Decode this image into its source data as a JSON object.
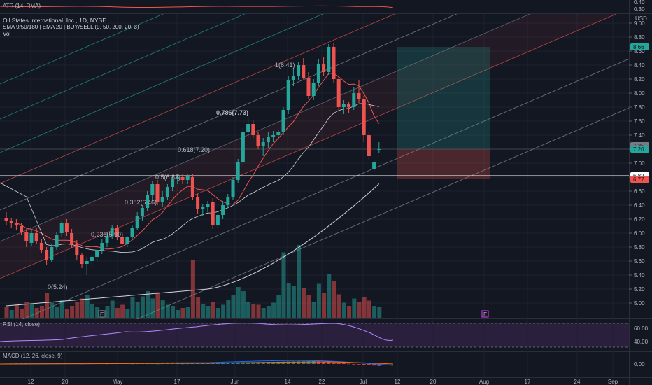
{
  "atr_panel": {
    "label": "ATR (14, RMA)",
    "ticks": [
      "0.40",
      "0.30"
    ]
  },
  "main_panel": {
    "title": "Oil States International, Inc., 1D, NYSE",
    "indicator_line": "SMA 9/50/180 | EMA 20 | BUY/SELL (9, 50, 200, 20, 3)",
    "volume_label": "Vol",
    "currency": "USD",
    "price_ticks": [
      "9.00",
      "8.80",
      "8.60",
      "8.40",
      "8.20",
      "8.00",
      "7.80",
      "7.60",
      "7.40",
      "7.20",
      "7.00",
      "6.80",
      "6.60",
      "6.40",
      "6.20",
      "6.00",
      "5.80",
      "5.60",
      "5.40",
      "5.20",
      "5.00"
    ],
    "price_tags": [
      {
        "label": "8.66",
        "color": "#26a69a"
      },
      {
        "label": "7.25",
        "color": "#787b86"
      },
      {
        "label": "7.20",
        "color": "#26a69a"
      },
      {
        "label": "6.82",
        "color": "#ffffff"
      },
      {
        "label": "6.77",
        "color": "#ef5350"
      }
    ],
    "fib_labels": [
      {
        "text": "1(8.41)",
        "color": "#9598a1"
      },
      {
        "text": "0.786(7.73)",
        "color": "#ffffff"
      },
      {
        "text": "0.618(7.20)",
        "color": "#26a69a"
      },
      {
        "text": "0.5(6.83)",
        "color": "#9598a1"
      },
      {
        "text": "0.382(6.46)",
        "color": "#d1d4dc"
      },
      {
        "text": "0.236(5.99)",
        "color": "#ef5350"
      },
      {
        "text": "0(5.24)",
        "color": "#9598a1"
      }
    ],
    "event_markers": [
      "E",
      "E"
    ]
  },
  "rsi_panel": {
    "label": "RSI (14, close)",
    "ticks": [
      "60.00",
      "40.00"
    ]
  },
  "macd_panel": {
    "label": "MACD (12, 26, close, 9)",
    "ticks": [
      "0.00"
    ]
  },
  "time_axis": [
    "12",
    "20",
    "May",
    "17",
    "Jun",
    "14",
    "22",
    "Jul",
    "12",
    "20",
    "Aug",
    "17",
    "24",
    "Sep"
  ],
  "chart_data": {
    "type": "candlestick",
    "title": "Oil States International, Inc., 1D, NYSE",
    "ylim": [
      4.9,
      9.1
    ],
    "up_color": "#26a69a",
    "down_color": "#ef5350",
    "candles": [
      [
        6.22,
        6.3,
        6.12,
        6.18
      ],
      [
        6.18,
        6.22,
        6.08,
        6.14
      ],
      [
        6.14,
        6.2,
        6.04,
        6.12
      ],
      [
        6.1,
        6.14,
        5.98,
        6.02
      ],
      [
        6.02,
        6.06,
        5.8,
        5.88
      ],
      [
        5.86,
        6.04,
        5.82,
        6.0
      ],
      [
        6.0,
        6.08,
        5.84,
        5.88
      ],
      [
        5.86,
        5.92,
        5.72,
        5.76
      ],
      [
        5.76,
        5.8,
        5.54,
        5.62
      ],
      [
        5.62,
        5.84,
        5.58,
        5.8
      ],
      [
        5.8,
        6.02,
        5.76,
        5.98
      ],
      [
        6.0,
        6.18,
        5.94,
        6.14
      ],
      [
        6.14,
        6.2,
        5.96,
        6.02
      ],
      [
        6.0,
        6.06,
        5.78,
        5.84
      ],
      [
        5.84,
        5.9,
        5.62,
        5.68
      ],
      [
        5.68,
        5.72,
        5.5,
        5.56
      ],
      [
        5.56,
        5.66,
        5.4,
        5.6
      ],
      [
        5.6,
        5.72,
        5.52,
        5.66
      ],
      [
        5.66,
        5.8,
        5.58,
        5.76
      ],
      [
        5.76,
        5.92,
        5.7,
        5.86
      ],
      [
        5.86,
        6.02,
        5.8,
        5.96
      ],
      [
        5.96,
        6.12,
        5.92,
        6.08
      ],
      [
        6.08,
        6.12,
        5.9,
        5.94
      ],
      [
        5.94,
        6.02,
        5.78,
        5.84
      ],
      [
        5.84,
        5.96,
        5.8,
        5.94
      ],
      [
        5.94,
        6.12,
        5.9,
        6.08
      ],
      [
        6.08,
        6.3,
        6.04,
        6.24
      ],
      [
        6.24,
        6.4,
        6.18,
        6.36
      ],
      [
        6.36,
        6.6,
        6.32,
        6.54
      ],
      [
        6.54,
        6.74,
        6.46,
        6.7
      ],
      [
        6.7,
        6.76,
        6.4,
        6.44
      ],
      [
        6.44,
        6.6,
        6.38,
        6.52
      ],
      [
        6.52,
        6.7,
        6.48,
        6.66
      ],
      [
        6.66,
        6.82,
        6.6,
        6.78
      ],
      [
        6.78,
        6.84,
        6.7,
        6.8
      ],
      [
        6.8,
        6.84,
        6.7,
        6.76
      ],
      [
        6.76,
        6.84,
        6.7,
        6.82
      ],
      [
        6.8,
        6.84,
        6.48,
        6.52
      ],
      [
        6.52,
        6.56,
        6.28,
        6.34
      ],
      [
        6.34,
        6.42,
        6.24,
        6.38
      ],
      [
        6.38,
        6.46,
        6.3,
        6.42
      ],
      [
        6.44,
        6.5,
        6.06,
        6.12
      ],
      [
        6.12,
        6.3,
        6.08,
        6.26
      ],
      [
        6.26,
        6.46,
        6.2,
        6.4
      ],
      [
        6.4,
        6.56,
        6.36,
        6.52
      ],
      [
        6.52,
        6.8,
        6.48,
        6.76
      ],
      [
        6.76,
        7.06,
        6.72,
        7.02
      ],
      [
        7.02,
        7.5,
        6.96,
        7.44
      ],
      [
        7.44,
        7.64,
        7.36,
        7.56
      ],
      [
        7.56,
        7.62,
        7.36,
        7.4
      ],
      [
        7.4,
        7.44,
        7.2,
        7.24
      ],
      [
        7.24,
        7.36,
        7.1,
        7.3
      ],
      [
        7.3,
        7.44,
        7.22,
        7.38
      ],
      [
        7.38,
        7.46,
        7.3,
        7.4
      ],
      [
        7.4,
        7.48,
        7.34,
        7.44
      ],
      [
        7.44,
        7.8,
        7.4,
        7.76
      ],
      [
        7.76,
        8.24,
        7.7,
        8.18
      ],
      [
        8.18,
        8.36,
        8.1,
        8.24
      ],
      [
        8.24,
        8.44,
        8.18,
        8.4
      ],
      [
        8.4,
        8.5,
        8.2,
        8.22
      ],
      [
        8.22,
        8.3,
        7.92,
        7.96
      ],
      [
        7.96,
        8.2,
        7.9,
        8.14
      ],
      [
        8.14,
        8.48,
        8.1,
        8.42
      ],
      [
        8.42,
        8.52,
        8.24,
        8.3
      ],
      [
        8.3,
        8.7,
        8.26,
        8.66
      ],
      [
        8.66,
        8.72,
        8.14,
        8.2
      ],
      [
        8.2,
        8.24,
        7.76,
        7.8
      ],
      [
        7.8,
        7.9,
        7.7,
        7.84
      ],
      [
        7.84,
        7.88,
        7.72,
        7.8
      ],
      [
        7.8,
        8.08,
        7.76,
        8.0
      ],
      [
        8.0,
        8.18,
        7.86,
        7.92
      ],
      [
        7.92,
        7.96,
        7.3,
        7.4
      ],
      [
        7.4,
        7.44,
        7.04,
        7.1
      ],
      [
        6.92,
        7.04,
        6.88,
        7.02
      ],
      [
        7.2,
        7.3,
        7.14,
        7.2
      ]
    ],
    "volume": [
      {
        "v": 1.1,
        "up": false
      },
      {
        "v": 0.8,
        "up": true
      },
      {
        "v": 1.3,
        "up": false
      },
      {
        "v": 0.9,
        "up": false
      },
      {
        "v": 1.6,
        "up": false
      },
      {
        "v": 1.4,
        "up": true
      },
      {
        "v": 1.0,
        "up": false
      },
      {
        "v": 1.2,
        "up": false
      },
      {
        "v": 2.4,
        "up": false
      },
      {
        "v": 1.5,
        "up": true
      },
      {
        "v": 1.1,
        "up": true
      },
      {
        "v": 1.8,
        "up": true
      },
      {
        "v": 0.9,
        "up": false
      },
      {
        "v": 1.2,
        "up": false
      },
      {
        "v": 1.6,
        "up": false
      },
      {
        "v": 1.9,
        "up": false
      },
      {
        "v": 2.2,
        "up": true
      },
      {
        "v": 1.4,
        "up": true
      },
      {
        "v": 1.1,
        "up": true
      },
      {
        "v": 0.8,
        "up": true
      },
      {
        "v": 1.2,
        "up": true
      },
      {
        "v": 1.7,
        "up": true
      },
      {
        "v": 1.0,
        "up": false
      },
      {
        "v": 1.3,
        "up": false
      },
      {
        "v": 0.9,
        "up": true
      },
      {
        "v": 2.0,
        "up": true
      },
      {
        "v": 1.6,
        "up": true
      },
      {
        "v": 2.1,
        "up": true
      },
      {
        "v": 2.6,
        "up": true
      },
      {
        "v": 1.9,
        "up": true
      },
      {
        "v": 2.5,
        "up": false
      },
      {
        "v": 1.8,
        "up": true
      },
      {
        "v": 1.3,
        "up": true
      },
      {
        "v": 1.2,
        "up": true
      },
      {
        "v": 0.8,
        "up": true
      },
      {
        "v": 1.0,
        "up": false
      },
      {
        "v": 1.1,
        "up": true
      },
      {
        "v": 5.6,
        "up": false
      },
      {
        "v": 2.0,
        "up": false
      },
      {
        "v": 1.4,
        "up": true
      },
      {
        "v": 1.2,
        "up": true
      },
      {
        "v": 1.6,
        "up": false
      },
      {
        "v": 1.0,
        "up": true
      },
      {
        "v": 1.3,
        "up": true
      },
      {
        "v": 1.8,
        "up": true
      },
      {
        "v": 2.2,
        "up": true
      },
      {
        "v": 3.0,
        "up": true
      },
      {
        "v": 2.6,
        "up": true
      },
      {
        "v": 1.6,
        "up": true
      },
      {
        "v": 1.4,
        "up": false
      },
      {
        "v": 1.3,
        "up": false
      },
      {
        "v": 1.0,
        "up": true
      },
      {
        "v": 1.2,
        "up": true
      },
      {
        "v": 1.5,
        "up": true
      },
      {
        "v": 2.2,
        "up": true
      },
      {
        "v": 6.3,
        "up": true
      },
      {
        "v": 3.4,
        "up": true
      },
      {
        "v": 3.1,
        "up": true
      },
      {
        "v": 7.0,
        "up": true
      },
      {
        "v": 2.9,
        "up": false
      },
      {
        "v": 2.2,
        "up": false
      },
      {
        "v": 1.6,
        "up": true
      },
      {
        "v": 3.3,
        "up": true
      },
      {
        "v": 2.4,
        "up": false
      },
      {
        "v": 4.2,
        "up": true
      },
      {
        "v": 3.6,
        "up": false
      },
      {
        "v": 2.3,
        "up": false
      },
      {
        "v": 1.5,
        "up": true
      },
      {
        "v": 1.2,
        "up": false
      },
      {
        "v": 1.9,
        "up": true
      },
      {
        "v": 1.6,
        "up": false
      },
      {
        "v": 2.0,
        "up": false
      },
      {
        "v": 1.7,
        "up": false
      },
      {
        "v": 1.2,
        "up": true
      },
      {
        "v": 1.1,
        "up": true
      }
    ],
    "position": {
      "entry": 7.2,
      "target": 8.66,
      "stop": 6.77
    },
    "horizontal_line": 6.82
  }
}
